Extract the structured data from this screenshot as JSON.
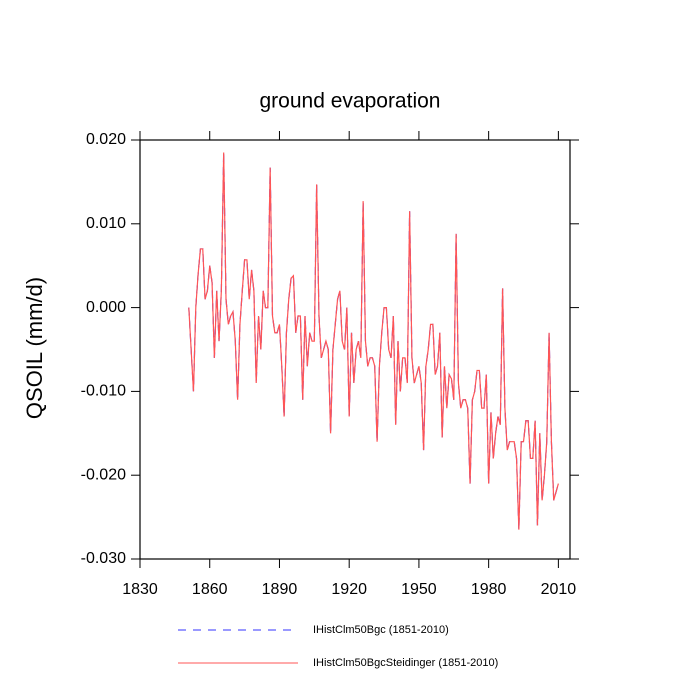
{
  "chart_data": {
    "type": "line",
    "title": "ground evaporation",
    "ylabel": "QSOIL  (mm/d)",
    "xlim": [
      1830,
      2015
    ],
    "ylim": [
      -0.03,
      0.02
    ],
    "xticks": [
      1830,
      1860,
      1890,
      1920,
      1950,
      1980,
      2010
    ],
    "yticks": [
      {
        "value": -0.03,
        "label": "-0.030"
      },
      {
        "value": -0.02,
        "label": "-0.020"
      },
      {
        "value": -0.01,
        "label": "-0.010"
      },
      {
        "value": 0,
        "label": "0.000"
      },
      {
        "value": 0.01,
        "label": "0.010"
      },
      {
        "value": 0.02,
        "label": "0.020"
      }
    ],
    "x": [
      1851,
      1852,
      1853,
      1854,
      1855,
      1856,
      1857,
      1858,
      1859,
      1860,
      1861,
      1862,
      1863,
      1864,
      1865,
      1866,
      1867,
      1868,
      1869,
      1870,
      1871,
      1872,
      1873,
      1874,
      1875,
      1876,
      1877,
      1878,
      1879,
      1880,
      1881,
      1882,
      1883,
      1884,
      1885,
      1886,
      1887,
      1888,
      1889,
      1890,
      1891,
      1892,
      1893,
      1894,
      1895,
      1896,
      1897,
      1898,
      1899,
      1900,
      1901,
      1902,
      1903,
      1904,
      1905,
      1906,
      1907,
      1908,
      1909,
      1910,
      1911,
      1912,
      1913,
      1914,
      1915,
      1916,
      1917,
      1918,
      1919,
      1920,
      1921,
      1922,
      1923,
      1924,
      1925,
      1926,
      1927,
      1928,
      1929,
      1930,
      1931,
      1932,
      1933,
      1934,
      1935,
      1936,
      1937,
      1938,
      1939,
      1940,
      1941,
      1942,
      1943,
      1944,
      1945,
      1946,
      1947,
      1948,
      1949,
      1950,
      1951,
      1952,
      1953,
      1954,
      1955,
      1956,
      1957,
      1958,
      1959,
      1960,
      1961,
      1962,
      1963,
      1964,
      1965,
      1966,
      1967,
      1968,
      1969,
      1970,
      1971,
      1972,
      1973,
      1974,
      1975,
      1976,
      1977,
      1978,
      1979,
      1980,
      1981,
      1982,
      1983,
      1984,
      1985,
      1986,
      1987,
      1988,
      1989,
      1990,
      1991,
      1992,
      1993,
      1994,
      1995,
      1996,
      1997,
      1998,
      1999,
      2000,
      2001,
      2002,
      2003,
      2004,
      2005,
      2006,
      2007,
      2008,
      2009,
      2010
    ],
    "series": [
      {
        "name": "IHistClm50Bgc (1851-2010)",
        "color": "#3333ff",
        "line_style": "dashed",
        "values": [
          0.0,
          -0.005,
          -0.01,
          0.0,
          0.004,
          0.007,
          0.007,
          0.001,
          0.002,
          0.005,
          0.003,
          -0.006,
          0.002,
          -0.004,
          0.002,
          0.0185,
          0.001,
          -0.002,
          -0.001,
          -0.0005,
          -0.004,
          -0.011,
          -0.002,
          0.002,
          0.0057,
          0.0057,
          0.001,
          0.0045,
          0.002,
          -0.009,
          -0.001,
          -0.005,
          0.002,
          0.0,
          0.0,
          0.0167,
          -0.001,
          -0.003,
          -0.003,
          -0.002,
          -0.007,
          -0.013,
          -0.003,
          0.001,
          0.0035,
          0.0038,
          -0.003,
          -0.001,
          -0.001,
          -0.011,
          -0.001,
          -0.007,
          -0.003,
          -0.004,
          -0.004,
          0.0147,
          -0.001,
          -0.006,
          -0.005,
          -0.004,
          -0.005,
          -0.015,
          -0.005,
          -0.002,
          0.001,
          0.002,
          -0.004,
          -0.005,
          0.0,
          -0.013,
          -0.003,
          -0.009,
          -0.005,
          -0.004,
          -0.006,
          0.0127,
          -0.004,
          -0.007,
          -0.006,
          -0.006,
          -0.007,
          -0.016,
          -0.007,
          -0.003,
          0.0,
          0.0,
          -0.005,
          -0.006,
          -0.001,
          -0.014,
          -0.004,
          -0.01,
          -0.006,
          -0.006,
          -0.009,
          0.0115,
          -0.006,
          -0.009,
          -0.008,
          -0.007,
          -0.009,
          -0.017,
          -0.007,
          -0.005,
          -0.002,
          -0.002,
          -0.008,
          -0.007,
          -0.003,
          -0.0155,
          -0.007,
          -0.012,
          -0.008,
          -0.0085,
          -0.011,
          0.0088,
          -0.009,
          -0.012,
          -0.011,
          -0.011,
          -0.012,
          -0.021,
          -0.011,
          -0.01,
          -0.0075,
          -0.0075,
          -0.012,
          -0.012,
          -0.008,
          -0.021,
          -0.0125,
          -0.018,
          -0.015,
          -0.013,
          -0.014,
          0.0023,
          -0.012,
          -0.017,
          -0.016,
          -0.016,
          -0.016,
          -0.018,
          -0.0265,
          -0.016,
          -0.016,
          -0.0135,
          -0.0135,
          -0.018,
          -0.018,
          -0.0135,
          -0.026,
          -0.015,
          -0.023,
          -0.02,
          -0.016,
          -0.003,
          -0.016,
          -0.023,
          -0.022,
          -0.021
        ]
      },
      {
        "name": "IHistClm50BgcSteidinger (1851-2010)",
        "color": "#ff5555",
        "line_style": "solid",
        "values": [
          0.0,
          -0.005,
          -0.01,
          0.0,
          0.004,
          0.007,
          0.007,
          0.001,
          0.002,
          0.005,
          0.003,
          -0.006,
          0.002,
          -0.004,
          0.002,
          0.0185,
          0.001,
          -0.002,
          -0.001,
          -0.0005,
          -0.004,
          -0.011,
          -0.002,
          0.002,
          0.0057,
          0.0057,
          0.001,
          0.0045,
          0.002,
          -0.009,
          -0.001,
          -0.005,
          0.002,
          0.0,
          0.0,
          0.0167,
          -0.001,
          -0.003,
          -0.003,
          -0.002,
          -0.007,
          -0.013,
          -0.003,
          0.001,
          0.0035,
          0.0038,
          -0.003,
          -0.001,
          -0.001,
          -0.011,
          -0.001,
          -0.007,
          -0.003,
          -0.004,
          -0.004,
          0.0147,
          -0.001,
          -0.006,
          -0.005,
          -0.004,
          -0.005,
          -0.015,
          -0.005,
          -0.002,
          0.001,
          0.002,
          -0.004,
          -0.005,
          0.0,
          -0.013,
          -0.003,
          -0.009,
          -0.005,
          -0.004,
          -0.006,
          0.0127,
          -0.004,
          -0.007,
          -0.006,
          -0.006,
          -0.007,
          -0.016,
          -0.007,
          -0.003,
          0.0,
          0.0,
          -0.005,
          -0.006,
          -0.001,
          -0.014,
          -0.004,
          -0.01,
          -0.006,
          -0.006,
          -0.009,
          0.0115,
          -0.006,
          -0.009,
          -0.008,
          -0.007,
          -0.009,
          -0.017,
          -0.007,
          -0.005,
          -0.002,
          -0.002,
          -0.008,
          -0.007,
          -0.003,
          -0.0155,
          -0.007,
          -0.012,
          -0.008,
          -0.0085,
          -0.011,
          0.0088,
          -0.009,
          -0.012,
          -0.011,
          -0.011,
          -0.012,
          -0.021,
          -0.011,
          -0.01,
          -0.0075,
          -0.0075,
          -0.012,
          -0.012,
          -0.008,
          -0.021,
          -0.0125,
          -0.018,
          -0.015,
          -0.013,
          -0.014,
          0.0023,
          -0.012,
          -0.017,
          -0.016,
          -0.016,
          -0.016,
          -0.018,
          -0.0265,
          -0.016,
          -0.016,
          -0.0135,
          -0.0135,
          -0.018,
          -0.018,
          -0.0135,
          -0.026,
          -0.015,
          -0.023,
          -0.02,
          -0.016,
          -0.003,
          -0.016,
          -0.023,
          -0.022,
          -0.021
        ]
      }
    ]
  }
}
